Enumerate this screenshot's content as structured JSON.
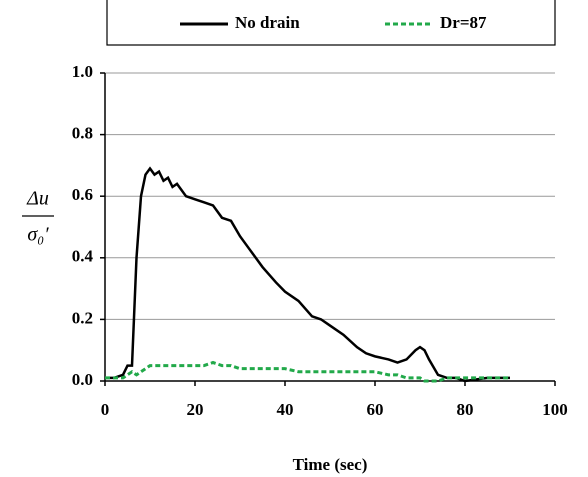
{
  "chart_data": {
    "type": "line",
    "xlabel": "Time (sec)",
    "ylabel": {
      "numerator": "Δu",
      "denominator": "σ₀′"
    },
    "x": [
      0,
      2,
      4,
      5,
      6,
      7,
      8,
      9,
      10,
      11,
      12,
      13,
      14,
      15,
      16,
      18,
      20,
      22,
      24,
      26,
      28,
      30,
      32,
      35,
      38,
      40,
      43,
      46,
      48,
      50,
      53,
      56,
      58,
      60,
      63,
      65,
      67,
      69,
      70,
      71,
      72,
      74,
      76,
      78,
      80,
      85,
      90
    ],
    "series": [
      {
        "name": "No drain",
        "color": "#000000",
        "dash": false,
        "values": [
          0.01,
          0.01,
          0.02,
          0.05,
          0.05,
          0.4,
          0.6,
          0.67,
          0.69,
          0.67,
          0.68,
          0.65,
          0.66,
          0.63,
          0.64,
          0.6,
          0.59,
          0.58,
          0.57,
          0.53,
          0.52,
          0.47,
          0.43,
          0.37,
          0.32,
          0.29,
          0.26,
          0.21,
          0.2,
          0.18,
          0.15,
          0.11,
          0.09,
          0.08,
          0.07,
          0.06,
          0.07,
          0.1,
          0.11,
          0.1,
          0.07,
          0.02,
          0.01,
          0.01,
          0.0,
          0.01,
          0.01
        ]
      },
      {
        "name": "Dr=87",
        "color": "#22a94a",
        "dash": true,
        "values": [
          0.01,
          0.01,
          0.01,
          0.02,
          0.03,
          0.02,
          0.03,
          0.04,
          0.05,
          0.05,
          0.05,
          0.05,
          0.05,
          0.05,
          0.05,
          0.05,
          0.05,
          0.05,
          0.06,
          0.05,
          0.05,
          0.04,
          0.04,
          0.04,
          0.04,
          0.04,
          0.03,
          0.03,
          0.03,
          0.03,
          0.03,
          0.03,
          0.03,
          0.03,
          0.02,
          0.02,
          0.01,
          0.01,
          0.01,
          0.0,
          0.0,
          0.0,
          0.01,
          0.01,
          0.01,
          0.01,
          0.01
        ]
      }
    ],
    "xlim": [
      0,
      100
    ],
    "xticks": [
      0,
      20,
      40,
      60,
      80,
      100
    ],
    "ylim": [
      0,
      1
    ],
    "yticks": [
      {
        "value": 0,
        "label": "0.0"
      },
      {
        "value": 0.2,
        "label": "0.2"
      },
      {
        "value": 0.4,
        "label": "0.4"
      },
      {
        "value": 0.6,
        "label": "0.6"
      },
      {
        "value": 0.8,
        "label": "0.8"
      },
      {
        "value": 1,
        "label": "1.0"
      }
    ],
    "grid": true,
    "legend": "top"
  }
}
